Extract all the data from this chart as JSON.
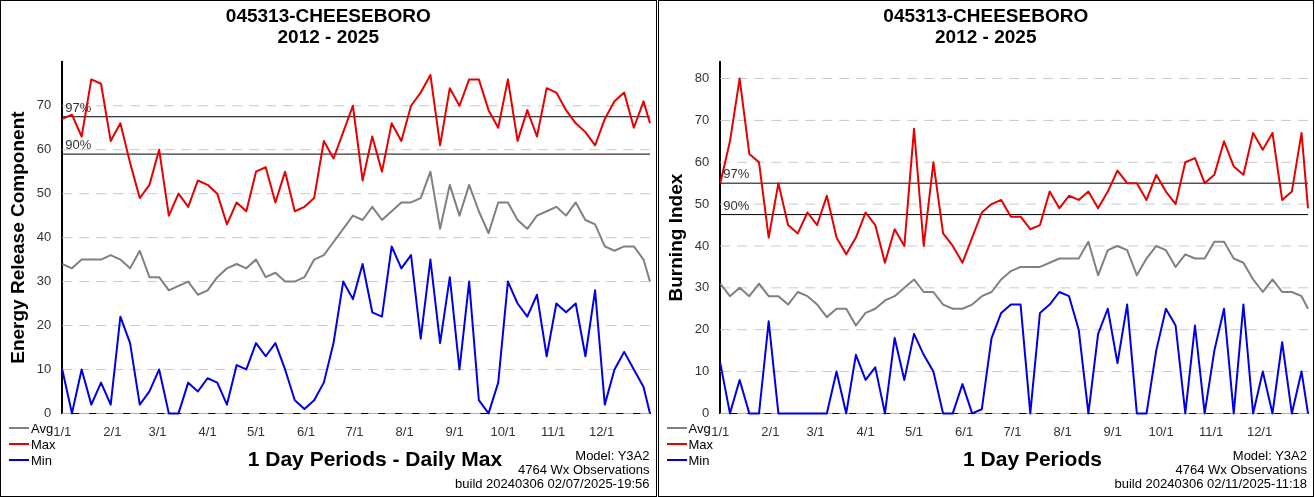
{
  "chart_data": [
    {
      "type": "line",
      "title": "045313-CHEESEBORO",
      "subtitle": "2012 - 2025",
      "xlabel": "1 Day Periods - Daily Max",
      "ylabel": "Energy Release Component",
      "x": [
        "--01-01",
        "--01-07",
        "--01-13",
        "--01-19",
        "--01-25",
        "--01-31",
        "--02-06",
        "--02-12",
        "--02-18",
        "--02-24",
        "--03-02",
        "--03-08",
        "--03-14",
        "--03-20",
        "--03-26",
        "--04-01",
        "--04-07",
        "--04-13",
        "--04-19",
        "--04-25",
        "--05-01",
        "--05-07",
        "--05-13",
        "--05-19",
        "--05-25",
        "--05-31",
        "--06-06",
        "--06-12",
        "--06-18",
        "--06-24",
        "--06-30",
        "--07-06",
        "--07-12",
        "--07-18",
        "--07-24",
        "--07-30",
        "--08-05",
        "--08-11",
        "--08-17",
        "--08-23",
        "--08-29",
        "--09-04",
        "--09-10",
        "--09-16",
        "--09-22",
        "--09-28",
        "--10-04",
        "--10-10",
        "--10-16",
        "--10-22",
        "--10-28",
        "--11-03",
        "--11-09",
        "--11-15",
        "--11-21",
        "--11-27",
        "--12-03",
        "--12-09",
        "--12-15",
        "--12-21",
        "--12-27",
        "--12-31"
      ],
      "series": [
        {
          "name": "Avg",
          "color": "#808080",
          "values": [
            34,
            33,
            35,
            35,
            35,
            36,
            35,
            33,
            37,
            31,
            31,
            28,
            29,
            30,
            27,
            28,
            31,
            33,
            34,
            33,
            35,
            31,
            32,
            30,
            30,
            31,
            35,
            36,
            39,
            42,
            45,
            44,
            47,
            44,
            46,
            48,
            48,
            49,
            55,
            42,
            52,
            45,
            52,
            46,
            41,
            48,
            48,
            44,
            42,
            45,
            46,
            47,
            45,
            48,
            44,
            43,
            38,
            37,
            38,
            38,
            35,
            30
          ]
        },
        {
          "name": "Max",
          "color": "#e60000",
          "values": [
            67,
            68,
            63,
            76,
            75,
            62,
            66,
            57,
            49,
            52,
            60,
            45,
            50,
            47,
            53,
            52,
            50,
            43,
            48,
            46,
            55,
            56,
            48,
            55,
            46,
            47,
            49,
            62,
            58,
            64,
            70,
            53,
            63,
            55,
            66,
            62,
            70,
            73,
            77,
            61,
            74,
            70,
            76,
            76,
            69,
            65,
            76,
            62,
            69,
            63,
            74,
            73,
            69,
            66,
            64,
            61,
            67,
            71,
            73,
            65,
            71,
            66
          ]
        },
        {
          "name": "Min",
          "color": "#0000e6",
          "values": [
            10,
            0,
            10,
            2,
            7,
            2,
            22,
            16,
            2,
            5,
            10,
            0,
            0,
            7,
            5,
            8,
            7,
            2,
            11,
            10,
            16,
            13,
            16,
            10,
            3,
            1,
            3,
            7,
            16,
            30,
            26,
            34,
            23,
            22,
            38,
            33,
            36,
            17,
            35,
            16,
            31,
            10,
            30,
            3,
            0,
            7,
            30,
            25,
            22,
            27,
            13,
            25,
            23,
            25,
            13,
            28,
            2,
            10,
            14,
            10,
            6,
            0
          ]
        }
      ],
      "xlim": [
        "--01-01",
        "--12-31"
      ],
      "xticks": [
        {
          "value": "--01-01",
          "label": "1/1"
        },
        {
          "value": "--02-01",
          "label": "2/1"
        },
        {
          "value": "--03-01",
          "label": "3/1"
        },
        {
          "value": "--04-01",
          "label": "4/1"
        },
        {
          "value": "--05-01",
          "label": "5/1"
        },
        {
          "value": "--06-01",
          "label": "6/1"
        },
        {
          "value": "--07-01",
          "label": "7/1"
        },
        {
          "value": "--08-01",
          "label": "8/1"
        },
        {
          "value": "--09-01",
          "label": "9/1"
        },
        {
          "value": "--10-01",
          "label": "10/1"
        },
        {
          "value": "--11-01",
          "label": "11/1"
        },
        {
          "value": "--12-01",
          "label": "12/1"
        }
      ],
      "ylim": [
        0,
        80
      ],
      "yticks": [
        0,
        10,
        20,
        30,
        40,
        50,
        60,
        70
      ],
      "grid": "y",
      "legend": "bottom left",
      "ref_lines": [
        {
          "axis": "y",
          "value": 67.5,
          "color": "#000000"
        },
        {
          "axis": "y",
          "value": 59,
          "color": "#000000"
        }
      ],
      "annotations": [
        {
          "text": "97%",
          "x": "--01-01",
          "y": 67.5
        },
        {
          "text": "90%",
          "x": "--01-01",
          "y": 59
        },
        "Model: Y3A2",
        "4764 Wx Observations",
        "build 20240306 02/07/2025-19:56"
      ]
    },
    {
      "type": "line",
      "title": "045313-CHEESEBORO",
      "subtitle": "2012 - 2025",
      "xlabel": "1 Day Periods",
      "ylabel": "Burning Index",
      "x": [
        "--01-01",
        "--01-07",
        "--01-13",
        "--01-19",
        "--01-25",
        "--01-31",
        "--02-06",
        "--02-12",
        "--02-18",
        "--02-24",
        "--03-02",
        "--03-08",
        "--03-14",
        "--03-20",
        "--03-26",
        "--04-01",
        "--04-07",
        "--04-13",
        "--04-19",
        "--04-25",
        "--05-01",
        "--05-07",
        "--05-13",
        "--05-19",
        "--05-25",
        "--05-31",
        "--06-06",
        "--06-12",
        "--06-18",
        "--06-24",
        "--06-30",
        "--07-06",
        "--07-12",
        "--07-18",
        "--07-24",
        "--07-30",
        "--08-05",
        "--08-11",
        "--08-17",
        "--08-23",
        "--08-29",
        "--09-04",
        "--09-10",
        "--09-16",
        "--09-22",
        "--09-28",
        "--10-04",
        "--10-10",
        "--10-16",
        "--10-22",
        "--10-28",
        "--11-03",
        "--11-09",
        "--11-15",
        "--11-21",
        "--11-27",
        "--12-03",
        "--12-09",
        "--12-15",
        "--12-21",
        "--12-27",
        "--12-31"
      ],
      "series": [
        {
          "name": "Avg",
          "color": "#808080",
          "values": [
            31,
            28,
            30,
            28,
            31,
            28,
            28,
            26,
            29,
            28,
            26,
            23,
            25,
            25,
            21,
            24,
            25,
            27,
            28,
            30,
            32,
            29,
            29,
            26,
            25,
            25,
            26,
            28,
            29,
            32,
            34,
            35,
            35,
            35,
            36,
            37,
            37,
            37,
            41,
            33,
            39,
            40,
            39,
            33,
            37,
            40,
            39,
            35,
            38,
            37,
            37,
            41,
            41,
            37,
            36,
            32,
            29,
            32,
            29,
            29,
            28,
            25
          ]
        },
        {
          "name": "Max",
          "color": "#e60000",
          "values": [
            55,
            65,
            80,
            62,
            60,
            42,
            55,
            45,
            43,
            48,
            45,
            52,
            42,
            38,
            42,
            48,
            45,
            36,
            44,
            40,
            68,
            40,
            60,
            43,
            40,
            36,
            42,
            48,
            50,
            51,
            47,
            47,
            44,
            45,
            53,
            49,
            52,
            51,
            53,
            49,
            53,
            58,
            55,
            55,
            51,
            57,
            53,
            50,
            60,
            61,
            55,
            57,
            65,
            59,
            57,
            67,
            63,
            67,
            51,
            53,
            67,
            49
          ]
        },
        {
          "name": "Min",
          "color": "#0000e6",
          "values": [
            12,
            0,
            8,
            0,
            0,
            22,
            0,
            0,
            0,
            0,
            0,
            0,
            10,
            0,
            14,
            8,
            11,
            0,
            18,
            8,
            19,
            14,
            10,
            0,
            0,
            7,
            0,
            1,
            18,
            24,
            26,
            26,
            0,
            24,
            26,
            29,
            28,
            20,
            0,
            19,
            25,
            12,
            26,
            0,
            0,
            15,
            25,
            21,
            0,
            21,
            0,
            15,
            25,
            0,
            26,
            0,
            10,
            0,
            17,
            0,
            10,
            0
          ]
        }
      ],
      "xlim": [
        "--01-01",
        "--12-31"
      ],
      "xticks": [
        {
          "value": "--01-01",
          "label": "1/1"
        },
        {
          "value": "--02-01",
          "label": "2/1"
        },
        {
          "value": "--03-01",
          "label": "3/1"
        },
        {
          "value": "--04-01",
          "label": "4/1"
        },
        {
          "value": "--05-01",
          "label": "5/1"
        },
        {
          "value": "--06-01",
          "label": "6/1"
        },
        {
          "value": "--07-01",
          "label": "7/1"
        },
        {
          "value": "--08-01",
          "label": "8/1"
        },
        {
          "value": "--09-01",
          "label": "9/1"
        },
        {
          "value": "--10-01",
          "label": "10/1"
        },
        {
          "value": "--11-01",
          "label": "11/1"
        },
        {
          "value": "--12-01",
          "label": "12/1"
        }
      ],
      "ylim": [
        0,
        84
      ],
      "yticks": [
        0,
        10,
        20,
        30,
        40,
        50,
        60,
        70,
        80
      ],
      "grid": "y",
      "legend": "bottom left",
      "ref_lines": [
        {
          "axis": "y",
          "value": 55,
          "color": "#000000"
        },
        {
          "axis": "y",
          "value": 47.5,
          "color": "#000000"
        }
      ],
      "annotations": [
        {
          "text": "97%",
          "x": "--01-01",
          "y": 55
        },
        {
          "text": "90%",
          "x": "--01-01",
          "y": 47.5
        },
        "Model: Y3A2",
        "4764 Wx Observations",
        "build 20240306 02/11/2025-11:18"
      ]
    }
  ]
}
